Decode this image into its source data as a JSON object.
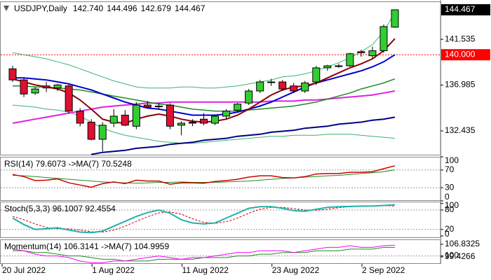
{
  "chart_data": [
    {
      "type": "candlestick",
      "title": "USDJPY,Daily",
      "ohlc_labels": [
        "142.740",
        "144.496",
        "142.679",
        "144.467"
      ],
      "categories": [
        "20 Jul 2022",
        null,
        null,
        null,
        null,
        null,
        null,
        null,
        "1 Aug 2022",
        null,
        null,
        null,
        null,
        null,
        null,
        null,
        "11 Aug 2022",
        null,
        null,
        null,
        null,
        null,
        null,
        null,
        "23 Aug 2022",
        null,
        null,
        null,
        null,
        null,
        null,
        null,
        "2 Sep 2022",
        null,
        null
      ],
      "open": [
        138.6,
        137.5,
        136.2,
        136.9,
        136.7,
        136.9,
        134.4,
        133.3,
        131.6,
        133.2,
        134.0,
        132.9,
        135.0,
        134.9,
        135.0,
        133.0,
        133.3,
        133.6,
        133.2,
        133.9,
        134.5,
        135.2,
        136.4,
        137.3,
        137.3,
        136.9,
        136.4,
        137.3,
        138.7,
        138.9,
        138.9,
        140.3,
        139.9,
        140.4,
        142.74
      ],
      "high": [
        138.9,
        137.7,
        136.8,
        137.3,
        137.1,
        137.1,
        134.7,
        133.6,
        133.3,
        134.6,
        134.5,
        135.3,
        135.4,
        135.2,
        135.2,
        133.4,
        133.6,
        134.2,
        134.0,
        134.6,
        135.2,
        136.6,
        137.5,
        137.6,
        137.5,
        137.2,
        137.4,
        138.9,
        139.0,
        139.1,
        140.2,
        140.5,
        140.8,
        143.0,
        144.496
      ],
      "low": [
        137.3,
        135.8,
        136.0,
        136.3,
        136.4,
        134.2,
        132.9,
        131.5,
        130.4,
        132.8,
        132.9,
        132.6,
        134.7,
        134.6,
        132.6,
        132.0,
        132.9,
        133.0,
        133.0,
        133.6,
        134.3,
        135.0,
        136.2,
        136.9,
        136.4,
        136.2,
        136.2,
        137.0,
        138.4,
        138.7,
        138.8,
        139.8,
        139.6,
        140.2,
        142.679
      ],
      "close": [
        137.5,
        136.1,
        136.6,
        136.7,
        137.0,
        134.4,
        133.2,
        131.6,
        133.0,
        133.9,
        133.0,
        135.0,
        134.8,
        134.9,
        132.9,
        133.2,
        133.2,
        133.2,
        133.9,
        134.4,
        135.1,
        136.4,
        137.3,
        137.3,
        136.6,
        136.4,
        137.2,
        138.7,
        138.9,
        138.9,
        140.1,
        140.2,
        140.4,
        142.8,
        144.467
      ],
      "bull_color": "#32cd32",
      "bear_color": "#e01030",
      "ylim": [
        130,
        145.3
      ],
      "yticks": [
        141.535,
        136.985,
        132.435
      ],
      "hline": {
        "value": 140,
        "label": "140.000",
        "color": "#ff0000"
      },
      "series": [
        {
          "color": "#3cb371",
          "line_width": 1,
          "values": [
            140.2,
            140.0,
            139.8,
            139.6,
            139.3,
            139.0,
            138.6,
            138.2,
            137.8,
            137.4,
            137.1,
            136.8,
            136.7,
            136.7,
            136.7,
            136.8,
            136.8,
            136.7,
            136.7,
            136.8,
            136.9,
            137.1,
            137.3,
            137.5,
            137.8,
            137.9,
            138.1,
            138.4,
            138.8,
            139.2,
            139.7,
            140.3,
            141.0,
            142.3,
            144.2
          ]
        },
        {
          "color": "#3cb371",
          "line_width": 1,
          "values": [
            135.0,
            134.9,
            134.8,
            134.6,
            134.5,
            134.3,
            133.9,
            133.3,
            132.7,
            132.3,
            132.0,
            131.8,
            131.6,
            131.4,
            131.3,
            131.2,
            131.2,
            131.3,
            131.4,
            131.5,
            131.6,
            131.7,
            131.8,
            131.9,
            131.9,
            132.0,
            132.0,
            132.0,
            132.1,
            132.1,
            132.1,
            132.0,
            131.9,
            131.8,
            131.7
          ]
        },
        {
          "color": "#000080",
          "line_width": 2,
          "values": [
            null,
            null,
            null,
            null,
            null,
            null,
            null,
            130.1,
            130.3,
            130.4,
            130.5,
            130.7,
            130.8,
            130.9,
            131.1,
            131.2,
            131.3,
            131.5,
            131.6,
            131.7,
            131.9,
            132.0,
            132.1,
            132.3,
            132.4,
            132.5,
            132.7,
            132.8,
            132.9,
            133.1,
            133.2,
            133.3,
            133.5,
            133.6,
            133.8
          ]
        },
        {
          "color": "#e020e0",
          "line_width": 2,
          "values": [
            133.2,
            133.4,
            133.6,
            133.8,
            134.0,
            134.2,
            134.4,
            134.6,
            134.8,
            134.9,
            135.0,
            135.1,
            135.2,
            135.2,
            135.3,
            135.3,
            135.3,
            135.3,
            135.3,
            135.3,
            135.3,
            135.3,
            135.3,
            135.4,
            135.4,
            135.4,
            135.5,
            135.5,
            135.6,
            135.7,
            135.8,
            135.9,
            136.0,
            136.2,
            136.4
          ]
        },
        {
          "color": "#228b22",
          "line_width": 1.5,
          "values": [
            136.9,
            136.9,
            136.8,
            136.8,
            136.7,
            136.6,
            136.5,
            136.3,
            136.1,
            135.9,
            135.7,
            135.5,
            135.3,
            135.1,
            135.0,
            134.8,
            134.6,
            134.5,
            134.4,
            134.4,
            134.4,
            134.5,
            134.6,
            134.7,
            134.8,
            134.9,
            135.1,
            135.3,
            135.6,
            135.9,
            136.2,
            136.6,
            136.9,
            137.2,
            137.6
          ]
        },
        {
          "color": "#0000cd",
          "line_width": 2,
          "values": [
            137.7,
            137.7,
            137.6,
            137.5,
            137.3,
            137.1,
            136.8,
            136.5,
            136.1,
            135.7,
            135.3,
            135.0,
            134.7,
            134.6,
            134.4,
            134.2,
            134.0,
            134.0,
            134.0,
            134.1,
            134.3,
            134.6,
            134.9,
            135.3,
            135.8,
            136.3,
            136.8,
            137.2,
            137.5,
            137.8,
            138.1,
            138.4,
            138.8,
            139.3,
            140.0
          ]
        },
        {
          "color": "#8b0000",
          "line_width": 2,
          "values": [
            137.6,
            137.3,
            137.0,
            136.8,
            136.6,
            136.2,
            135.5,
            134.6,
            133.6,
            133.3,
            133.2,
            133.6,
            133.9,
            134.1,
            133.9,
            133.6,
            133.4,
            133.3,
            133.4,
            133.6,
            134.0,
            134.6,
            135.3,
            136.0,
            136.5,
            136.8,
            136.9,
            137.2,
            137.7,
            138.2,
            138.7,
            139.1,
            139.6,
            140.4,
            141.6
          ]
        }
      ]
    },
    {
      "type": "line",
      "title": "RSI(14) 79.6073  ->MA(7) 70.5248",
      "ylim": [
        0,
        100
      ],
      "yticks": [
        100,
        70,
        30,
        0
      ],
      "levels": [
        70,
        30
      ],
      "series": [
        {
          "color": "#228b22",
          "line_width": 1,
          "values": [
            58,
            57,
            55,
            53,
            51,
            49,
            47,
            45,
            43,
            42,
            41,
            40,
            41,
            42,
            42,
            43,
            42,
            42,
            42,
            43,
            44,
            45,
            47,
            49,
            51,
            52,
            54,
            55,
            57,
            58,
            60,
            62,
            64,
            66,
            70.5248
          ]
        },
        {
          "color": "#d00000",
          "line_width": 1.5,
          "values": [
            60,
            55,
            46,
            47,
            50,
            41,
            36,
            31,
            39,
            43,
            39,
            47,
            45,
            45,
            38,
            41,
            41,
            40,
            44,
            46,
            49,
            54,
            57,
            57,
            53,
            52,
            55,
            61,
            62,
            62,
            65,
            65,
            66,
            73,
            79.6073
          ]
        }
      ]
    },
    {
      "type": "line",
      "title": "Stoch(5,3,3) 96.1007 92.4554",
      "ylim": [
        -6.4,
        105.8
      ],
      "yticks": [
        100,
        80,
        20,
        0
      ],
      "levels": [
        80,
        20
      ],
      "series": [
        {
          "color": "#d00000",
          "line_width": 1,
          "dash": true,
          "values": [
            60,
            50,
            37,
            26,
            22,
            22,
            18,
            13,
            12,
            18,
            30,
            45,
            59,
            71,
            74,
            67,
            53,
            42,
            39,
            44,
            55,
            70,
            82,
            88,
            88,
            84,
            80,
            79,
            82,
            87,
            90,
            91,
            92,
            93,
            92.4554
          ]
        },
        {
          "color": "#20b2aa",
          "line_width": 2,
          "values": [
            55,
            35,
            20,
            22,
            25,
            18,
            12,
            10,
            15,
            30,
            45,
            60,
            72,
            80,
            70,
            50,
            40,
            37,
            40,
            55,
            70,
            85,
            90,
            90,
            85,
            78,
            76,
            82,
            88,
            90,
            91,
            92,
            92,
            94,
            96.1007
          ]
        }
      ]
    },
    {
      "type": "line",
      "title": "Momentum(14) 106.3141  ->MA(7) 104.9959",
      "ylim": [
        95.3,
        109.7
      ],
      "yticks": [
        106.8325,
        100,
        99.4266
      ],
      "levels": [
        100
      ],
      "series": [
        {
          "color": "#228b22",
          "line_width": 1,
          "values": [
            103,
            103,
            102,
            102,
            101,
            100,
            100,
            99,
            98,
            98,
            97,
            97,
            97,
            98,
            98,
            98,
            98,
            99,
            99,
            99,
            100,
            100,
            101,
            101,
            102,
            102,
            102,
            103,
            103,
            103,
            104,
            104,
            104,
            105,
            104.9959
          ]
        },
        {
          "color": "#ff00ff",
          "line_width": 1,
          "values": [
            104,
            103,
            101,
            100,
            100,
            99,
            97,
            96,
            96,
            97,
            97,
            98,
            99,
            100,
            99,
            98,
            99,
            99,
            100,
            101,
            102,
            102,
            103,
            103,
            103,
            102,
            103,
            104,
            105,
            105,
            106,
            105,
            105,
            106,
            106.3141
          ]
        }
      ]
    }
  ]
}
